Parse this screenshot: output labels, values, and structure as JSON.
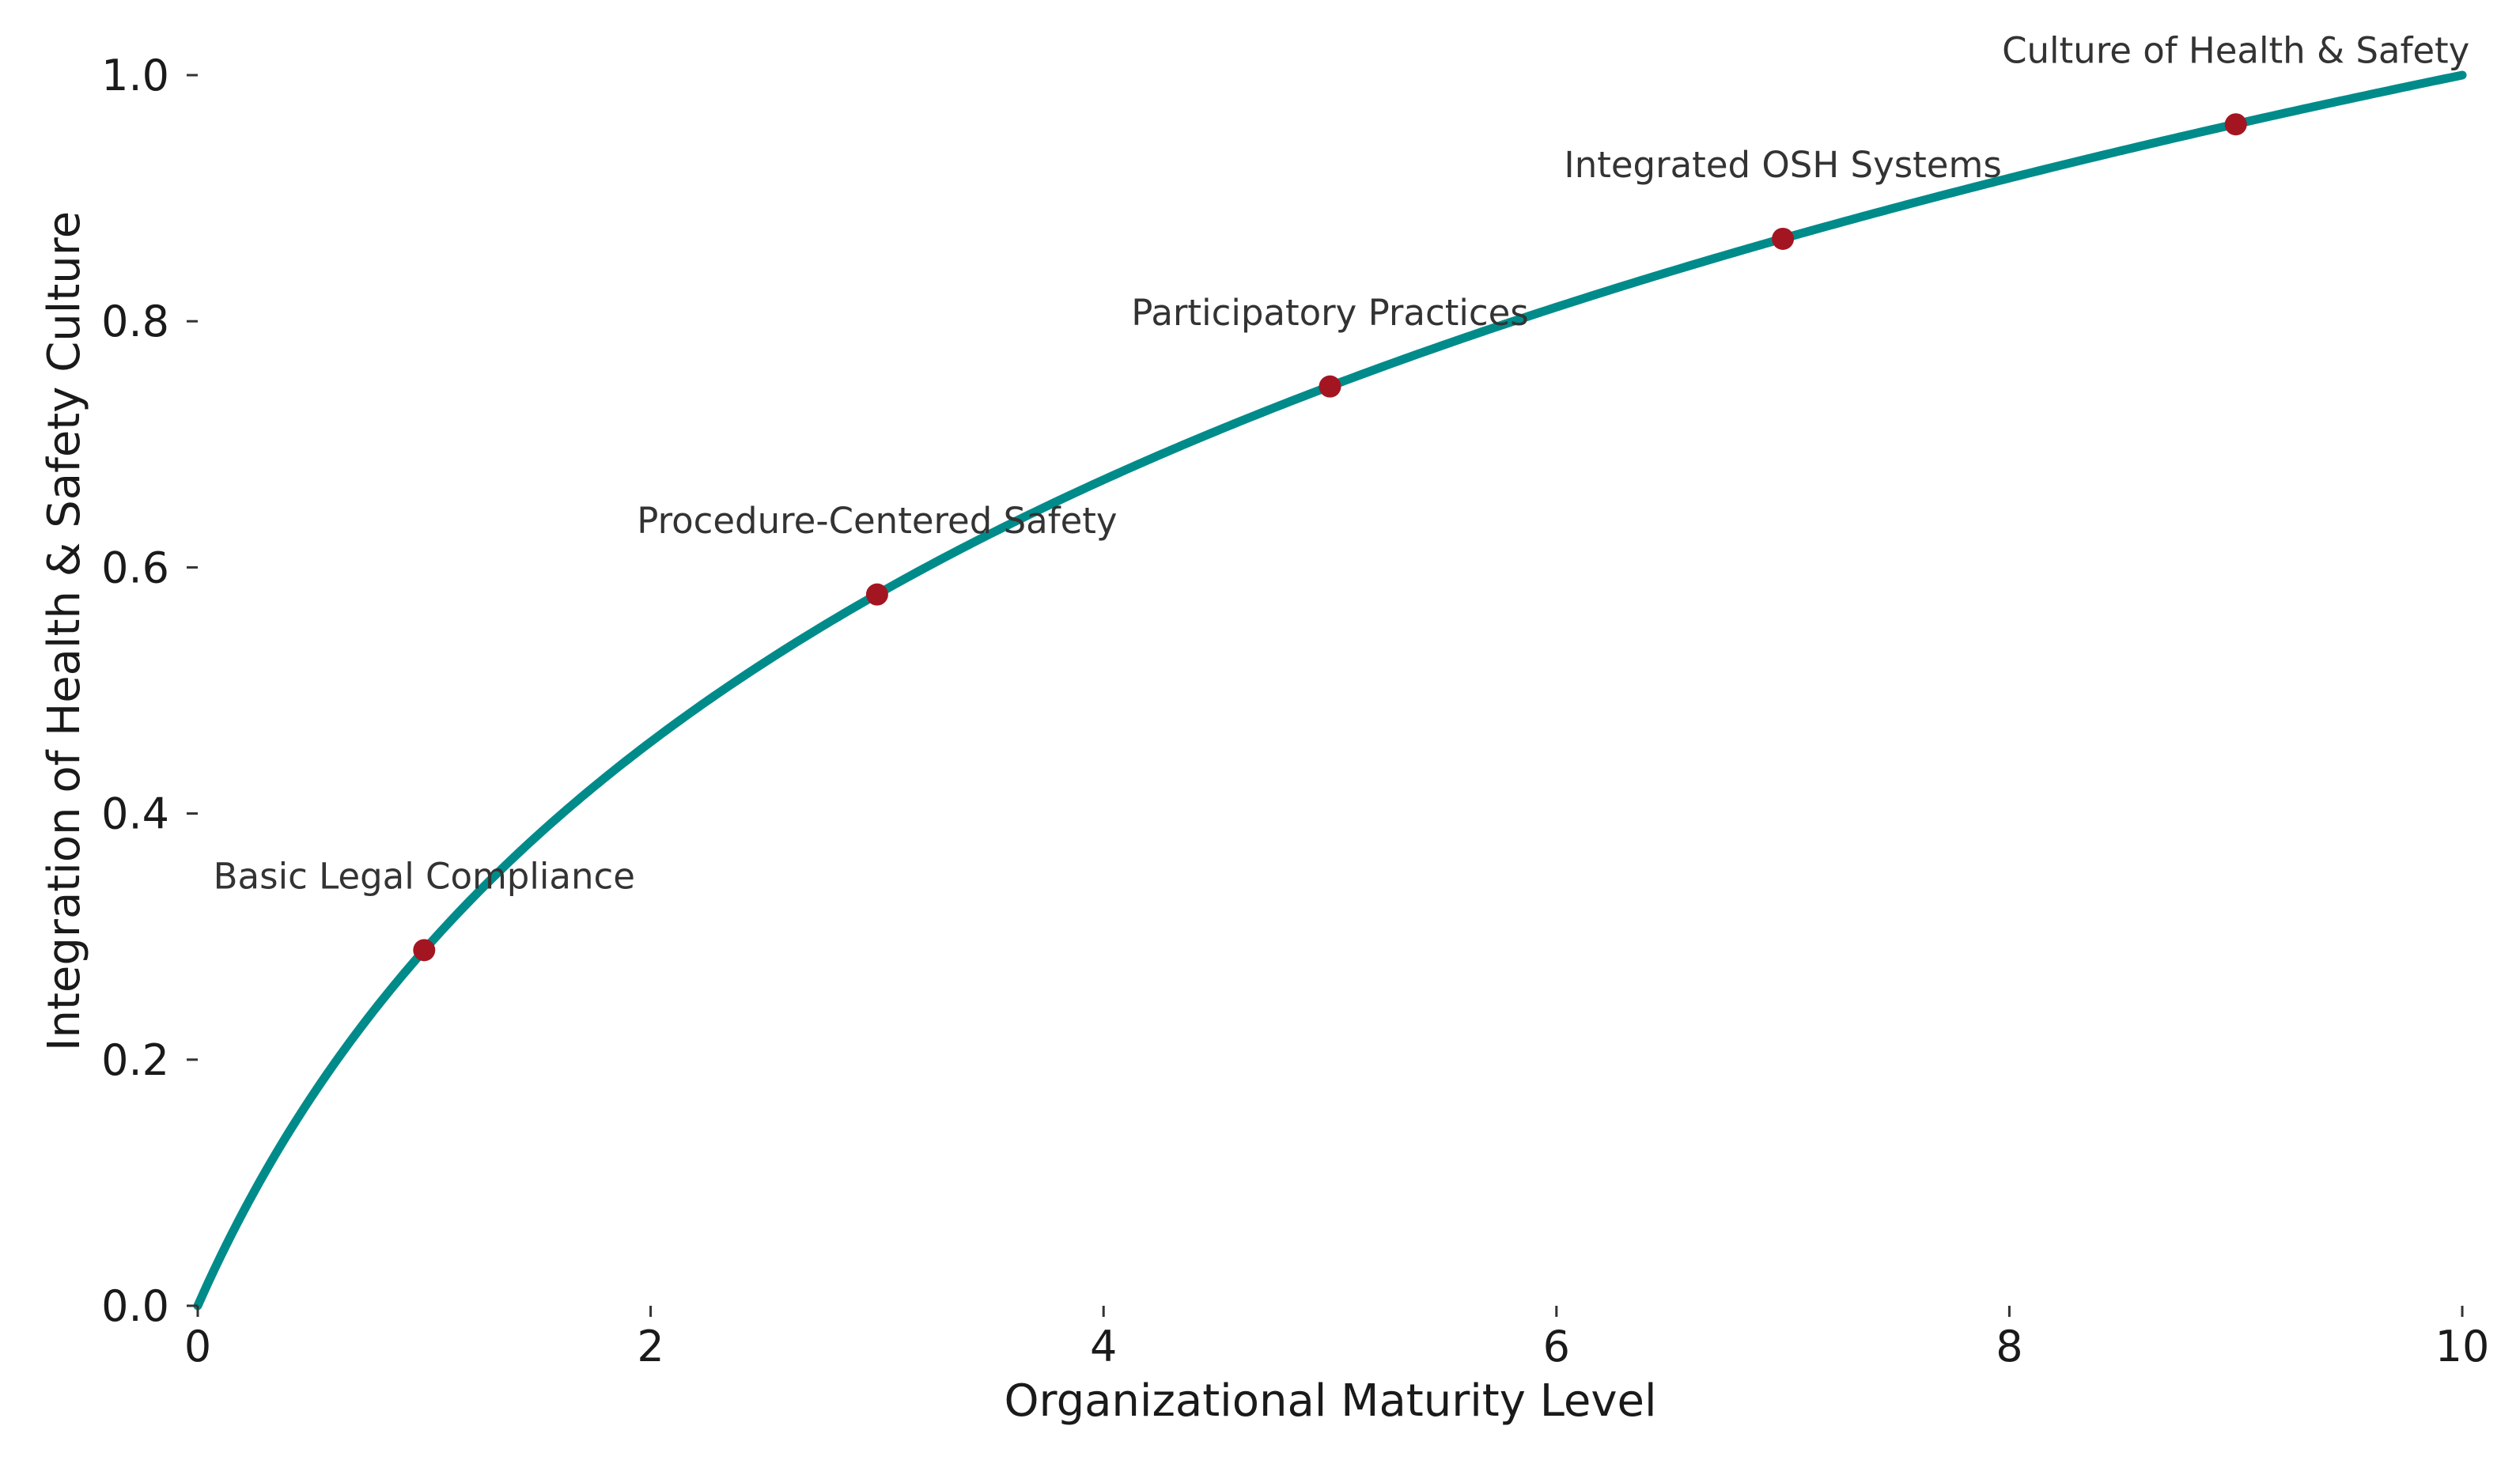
{
  "chart_data": {
    "type": "line",
    "title": "",
    "xlabel": "Organizational Maturity Level",
    "ylabel": "Integration of Health & Safety Culture",
    "xlim": [
      0,
      10
    ],
    "ylim": [
      0,
      1
    ],
    "grid": false,
    "legend": "none",
    "x_ticks": [
      "0",
      "2",
      "4",
      "6",
      "8",
      "10"
    ],
    "y_ticks": [
      "0.0",
      "0.2",
      "0.4",
      "0.6",
      "0.8",
      "1.0"
    ],
    "curve": {
      "formula": "log(1+x)/log(11)",
      "color": "#008b8b"
    },
    "points": [
      {
        "x": 1,
        "y": 0.289,
        "label": "Basic Legal Compliance"
      },
      {
        "x": 3,
        "y": 0.578,
        "label": "Procedure-Centered Safety"
      },
      {
        "x": 5,
        "y": 0.747,
        "label": "Participatory Practices"
      },
      {
        "x": 7,
        "y": 0.867,
        "label": "Integrated OSH Systems"
      },
      {
        "x": 9,
        "y": 0.96,
        "label": "Culture of Health & Safety"
      }
    ],
    "point_color": "#a31621"
  }
}
